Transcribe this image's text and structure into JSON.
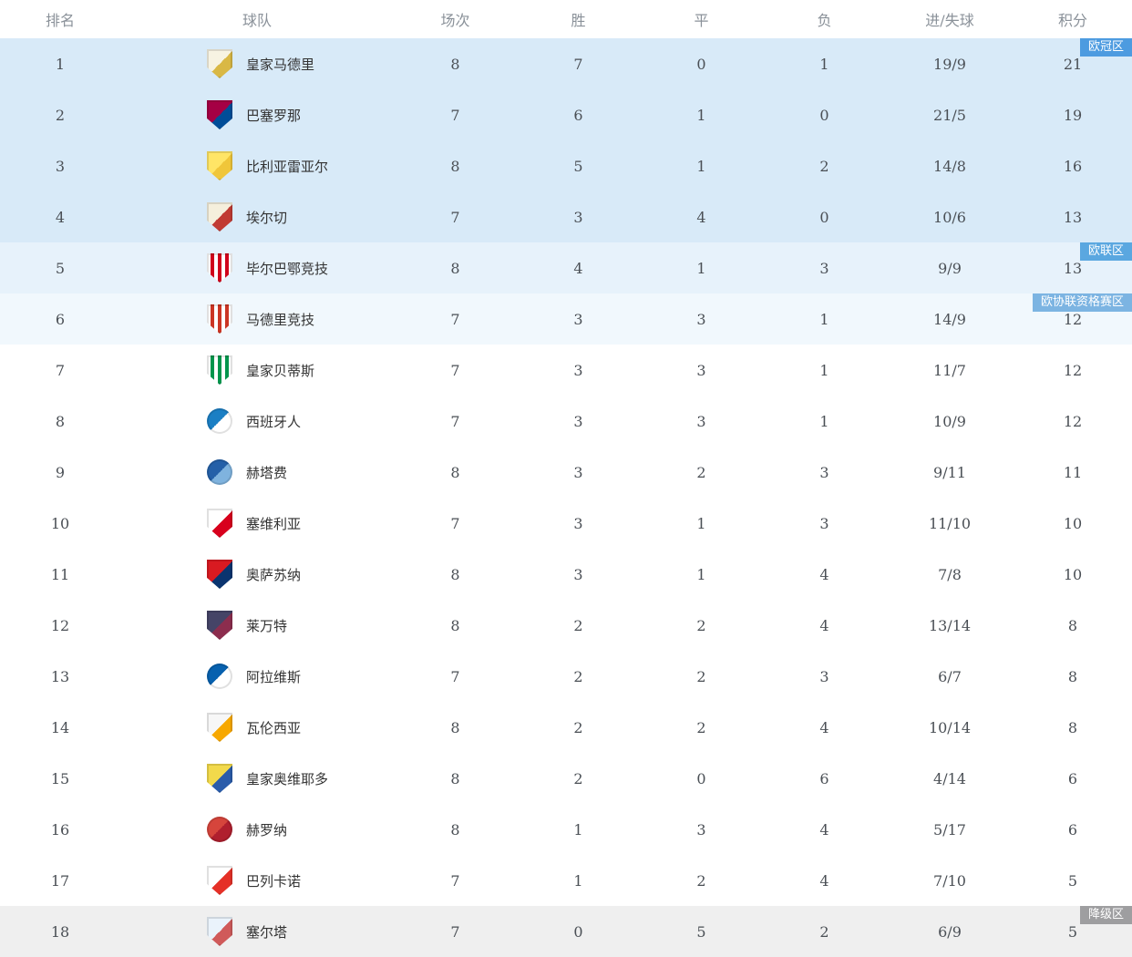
{
  "table": {
    "headers": [
      "排名",
      "球队",
      "场次",
      "胜",
      "平",
      "负",
      "进/失球",
      "积分"
    ],
    "zone_text_color": "#ffffff",
    "rows": [
      {
        "rank": "1",
        "team": "皇家马德里",
        "played": "8",
        "win": "7",
        "draw": "0",
        "loss": "1",
        "goals": "19/9",
        "points": "21",
        "row_bg": "#d8eaf8",
        "zone": {
          "label": "欧冠区",
          "color": "#4d9be0"
        },
        "crest": {
          "shape": "shield",
          "pattern": "split",
          "colors": [
            "#f7f3e2",
            "#d9b845"
          ]
        }
      },
      {
        "rank": "2",
        "team": "巴塞罗那",
        "played": "7",
        "win": "6",
        "draw": "1",
        "loss": "0",
        "goals": "21/5",
        "points": "19",
        "row_bg": "#d8eaf8",
        "crest": {
          "shape": "shield",
          "pattern": "split",
          "colors": [
            "#a50044",
            "#004d98"
          ]
        }
      },
      {
        "rank": "3",
        "team": "比利亚雷亚尔",
        "played": "8",
        "win": "5",
        "draw": "1",
        "loss": "2",
        "goals": "14/8",
        "points": "16",
        "row_bg": "#d8eaf8",
        "crest": {
          "shape": "shield",
          "pattern": "split",
          "colors": [
            "#ffe566",
            "#f0c63a"
          ]
        }
      },
      {
        "rank": "4",
        "team": "埃尔切",
        "played": "7",
        "win": "3",
        "draw": "4",
        "loss": "0",
        "goals": "10/6",
        "points": "13",
        "row_bg": "#d8eaf8",
        "crest": {
          "shape": "shield",
          "pattern": "split",
          "colors": [
            "#f5efdc",
            "#c13b33"
          ]
        }
      },
      {
        "rank": "5",
        "team": "毕尔巴鄂竞技",
        "played": "8",
        "win": "4",
        "draw": "1",
        "loss": "3",
        "goals": "9/9",
        "points": "13",
        "row_bg": "#e7f2fb",
        "zone": {
          "label": "欧联区",
          "color": "#5aa7e0"
        },
        "crest": {
          "shape": "shield",
          "pattern": "stripes",
          "colors": [
            "#ffffff",
            "#d0021b"
          ]
        }
      },
      {
        "rank": "6",
        "team": "马德里竞技",
        "played": "7",
        "win": "3",
        "draw": "3",
        "loss": "1",
        "goals": "14/9",
        "points": "12",
        "row_bg": "#f1f8fd",
        "zone": {
          "label": "欧协联资格赛区",
          "color": "#7cb4e2"
        },
        "crest": {
          "shape": "shield",
          "pattern": "stripes",
          "colors": [
            "#ffffff",
            "#cb3524"
          ]
        }
      },
      {
        "rank": "7",
        "team": "皇家贝蒂斯",
        "played": "7",
        "win": "3",
        "draw": "3",
        "loss": "1",
        "goals": "11/7",
        "points": "12",
        "row_bg": "#ffffff",
        "crest": {
          "shape": "shield",
          "pattern": "stripes",
          "colors": [
            "#ffffff",
            "#00954c"
          ]
        }
      },
      {
        "rank": "8",
        "team": "西班牙人",
        "played": "7",
        "win": "3",
        "draw": "3",
        "loss": "1",
        "goals": "10/9",
        "points": "12",
        "row_bg": "#ffffff",
        "crest": {
          "shape": "circle",
          "pattern": "split",
          "colors": [
            "#1b7fc4",
            "#ffffff"
          ]
        }
      },
      {
        "rank": "9",
        "team": "赫塔费",
        "played": "8",
        "win": "3",
        "draw": "2",
        "loss": "3",
        "goals": "9/11",
        "points": "11",
        "row_bg": "#ffffff",
        "crest": {
          "shape": "circle",
          "pattern": "split",
          "colors": [
            "#2460a8",
            "#7fb3de"
          ]
        }
      },
      {
        "rank": "10",
        "team": "塞维利亚",
        "played": "7",
        "win": "3",
        "draw": "1",
        "loss": "3",
        "goals": "11/10",
        "points": "10",
        "row_bg": "#ffffff",
        "crest": {
          "shape": "shield",
          "pattern": "split",
          "colors": [
            "#ffffff",
            "#d8001d"
          ]
        }
      },
      {
        "rank": "11",
        "team": "奥萨苏纳",
        "played": "8",
        "win": "3",
        "draw": "1",
        "loss": "4",
        "goals": "7/8",
        "points": "10",
        "row_bg": "#ffffff",
        "crest": {
          "shape": "shield",
          "pattern": "split",
          "colors": [
            "#d91a21",
            "#0a346f"
          ]
        }
      },
      {
        "rank": "12",
        "team": "莱万特",
        "played": "8",
        "win": "2",
        "draw": "2",
        "loss": "4",
        "goals": "13/14",
        "points": "8",
        "row_bg": "#ffffff",
        "crest": {
          "shape": "shield",
          "pattern": "split",
          "colors": [
            "#454467",
            "#8c2d4e"
          ]
        }
      },
      {
        "rank": "13",
        "team": "阿拉维斯",
        "played": "7",
        "win": "2",
        "draw": "2",
        "loss": "3",
        "goals": "6/7",
        "points": "8",
        "row_bg": "#ffffff",
        "crest": {
          "shape": "circle",
          "pattern": "split",
          "colors": [
            "#0761af",
            "#ffffff"
          ]
        }
      },
      {
        "rank": "14",
        "team": "瓦伦西亚",
        "played": "8",
        "win": "2",
        "draw": "2",
        "loss": "4",
        "goals": "10/14",
        "points": "8",
        "row_bg": "#ffffff",
        "crest": {
          "shape": "shield",
          "pattern": "split",
          "colors": [
            "#f7f7f7",
            "#f7a800"
          ]
        }
      },
      {
        "rank": "15",
        "team": "皇家奥维耶多",
        "played": "8",
        "win": "2",
        "draw": "0",
        "loss": "6",
        "goals": "4/14",
        "points": "6",
        "row_bg": "#ffffff",
        "crest": {
          "shape": "shield",
          "pattern": "split",
          "colors": [
            "#f2d94b",
            "#2a5caa"
          ]
        }
      },
      {
        "rank": "16",
        "team": "赫罗纳",
        "played": "8",
        "win": "1",
        "draw": "3",
        "loss": "4",
        "goals": "5/17",
        "points": "6",
        "row_bg": "#ffffff",
        "crest": {
          "shape": "circle",
          "pattern": "split",
          "colors": [
            "#d6453c",
            "#b01f2e"
          ]
        }
      },
      {
        "rank": "17",
        "team": "巴列卡诺",
        "played": "7",
        "win": "1",
        "draw": "2",
        "loss": "4",
        "goals": "7/10",
        "points": "5",
        "row_bg": "#ffffff",
        "crest": {
          "shape": "shield",
          "pattern": "split",
          "colors": [
            "#ffffff",
            "#e53027"
          ]
        }
      },
      {
        "rank": "18",
        "team": "塞尔塔",
        "played": "7",
        "win": "0",
        "draw": "5",
        "loss": "2",
        "goals": "6/9",
        "points": "5",
        "row_bg": "#efefef",
        "zone": {
          "label": "降级区",
          "color": "#9e9ea0"
        },
        "crest": {
          "shape": "shield",
          "pattern": "split",
          "colors": [
            "#eaf3fb",
            "#d05a5a"
          ]
        }
      }
    ]
  }
}
